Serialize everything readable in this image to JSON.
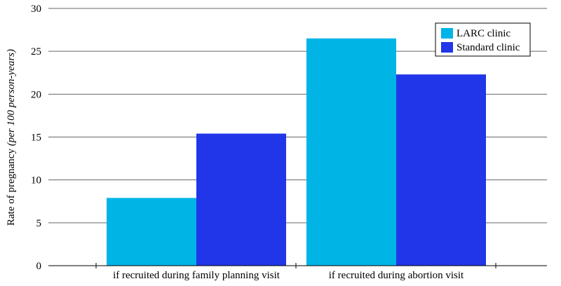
{
  "chart_data": {
    "type": "bar",
    "title": "",
    "xlabel": "",
    "ylabel": "Rate of pregnancy",
    "ylabel_italic": "(per 100 person-years)",
    "ylim": [
      0,
      30
    ],
    "yticks": [
      0,
      5,
      10,
      15,
      20,
      25,
      30
    ],
    "grid": true,
    "legend_position": "top-right",
    "categories": [
      "if recruited during family planning visit",
      "if recruited during abortion visit"
    ],
    "series": [
      {
        "name": "LARC clinic",
        "color": "#00b4e6",
        "values": [
          7.9,
          26.5
        ]
      },
      {
        "name": "Standard clinic",
        "color": "#2036e8",
        "values": [
          15.4,
          22.3
        ]
      }
    ]
  }
}
